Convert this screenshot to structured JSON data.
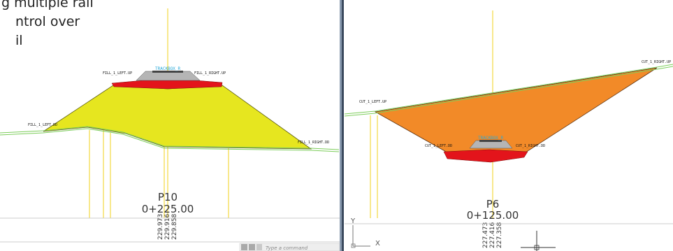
{
  "intro_text": [
    "g multiple rail",
    "ntrol over",
    "il"
  ],
  "left_section": {
    "labels": {
      "trackbox": "TRACKBOX_R",
      "left_up": "FILL_1_LEFT.UP",
      "right_up": "FILL_1_RIGHT.UP",
      "left_dd": "FILL_1_LEFT.DD",
      "right_dd": "FILL_1_RIGHT.DD"
    },
    "name": "P10",
    "station": "0+225.00",
    "elevations": [
      229.973,
      229.916,
      229.858
    ]
  },
  "right_section": {
    "labels": {
      "trackbox": "TRACKBOX_R",
      "left_up": "CUT_1_LEFT.UP",
      "right_up": "CUT_1_RIGHT.UP",
      "left_dd": "CUT_1_LEFT.DD",
      "right_dd": "CUT_1_RIGHT.DD"
    },
    "name": "P6",
    "station": "0+125.00",
    "elevations": [
      227.473,
      227.416,
      227.358
    ]
  },
  "command_line": {
    "placeholder": "Type a command"
  },
  "ucs": {
    "y": "Y",
    "x": "X"
  }
}
